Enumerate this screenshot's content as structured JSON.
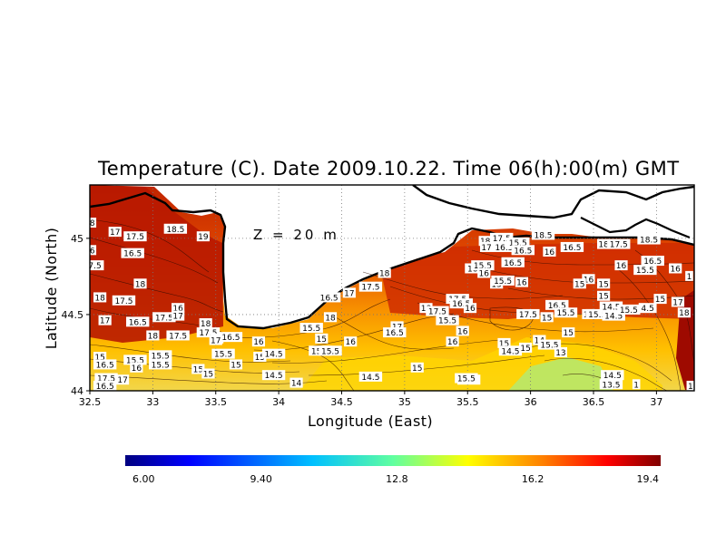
{
  "chart_data": {
    "type": "heatmap",
    "title": "Temperature (C). Date 2009.10.22. Time 06(h):00(m) GMT",
    "xlabel": "Longitude (East)",
    "ylabel": "Latitude (North)",
    "xlim": [
      32.5,
      37.3
    ],
    "ylim": [
      44.0,
      45.35
    ],
    "x_ticks": [
      "32.5",
      "33",
      "33.5",
      "34",
      "34.5",
      "35",
      "35.5",
      "36",
      "36.5",
      "37"
    ],
    "x_tick_values": [
      32.5,
      33,
      33.5,
      34,
      34.5,
      35,
      35.5,
      36,
      36.5,
      37
    ],
    "y_ticks": [
      "44",
      "44.5",
      "45"
    ],
    "y_tick_values": [
      44,
      44.5,
      45
    ],
    "annotation": "Z = 20 m",
    "grid": true,
    "colorbar": {
      "min": 6.0,
      "max": 19.4,
      "tick_labels": [
        "6.00",
        "9.40",
        "12.8",
        "16.2",
        "19.4"
      ],
      "tick_values": [
        6.0,
        9.4,
        12.8,
        16.2,
        19.4
      ]
    },
    "contour_labels": [
      {
        "lon": 32.52,
        "lat": 45.1,
        "text": "8"
      },
      {
        "lon": 32.7,
        "lat": 45.04,
        "text": "17"
      },
      {
        "lon": 32.86,
        "lat": 45.01,
        "text": "17.5"
      },
      {
        "lon": 33.18,
        "lat": 45.06,
        "text": "18.5"
      },
      {
        "lon": 33.4,
        "lat": 45.01,
        "text": "19"
      },
      {
        "lon": 32.52,
        "lat": 44.92,
        "text": "6"
      },
      {
        "lon": 32.84,
        "lat": 44.9,
        "text": "16.5"
      },
      {
        "lon": 32.54,
        "lat": 44.82,
        "text": "7.5"
      },
      {
        "lon": 32.58,
        "lat": 44.61,
        "text": "18"
      },
      {
        "lon": 32.9,
        "lat": 44.7,
        "text": "18"
      },
      {
        "lon": 32.77,
        "lat": 44.59,
        "text": "17.5"
      },
      {
        "lon": 32.62,
        "lat": 44.46,
        "text": "17"
      },
      {
        "lon": 32.88,
        "lat": 44.45,
        "text": "16.5"
      },
      {
        "lon": 33.09,
        "lat": 44.48,
        "text": "17.5"
      },
      {
        "lon": 33.2,
        "lat": 44.54,
        "text": "16"
      },
      {
        "lon": 33.2,
        "lat": 44.49,
        "text": "17"
      },
      {
        "lon": 33.0,
        "lat": 44.36,
        "text": "18"
      },
      {
        "lon": 33.2,
        "lat": 44.36,
        "text": "17.5"
      },
      {
        "lon": 33.42,
        "lat": 44.44,
        "text": "18"
      },
      {
        "lon": 33.44,
        "lat": 44.38,
        "text": "17.5"
      },
      {
        "lon": 33.51,
        "lat": 44.34,
        "text": "17"
      },
      {
        "lon": 33.62,
        "lat": 44.35,
        "text": "16.5"
      },
      {
        "lon": 33.84,
        "lat": 44.32,
        "text": "16"
      },
      {
        "lon": 32.58,
        "lat": 44.22,
        "text": "15"
      },
      {
        "lon": 32.62,
        "lat": 44.17,
        "text": "16.5"
      },
      {
        "lon": 32.86,
        "lat": 44.2,
        "text": "15.5"
      },
      {
        "lon": 32.87,
        "lat": 44.15,
        "text": "16"
      },
      {
        "lon": 33.06,
        "lat": 44.23,
        "text": "15.5"
      },
      {
        "lon": 33.06,
        "lat": 44.17,
        "text": "15.5"
      },
      {
        "lon": 32.63,
        "lat": 44.08,
        "text": "17.5"
      },
      {
        "lon": 32.62,
        "lat": 44.03,
        "text": "16.5"
      },
      {
        "lon": 32.76,
        "lat": 44.07,
        "text": "17"
      },
      {
        "lon": 33.36,
        "lat": 44.14,
        "text": "15"
      },
      {
        "lon": 33.44,
        "lat": 44.11,
        "text": "15"
      },
      {
        "lon": 33.5,
        "lat": 44.33,
        "text": "17"
      },
      {
        "lon": 33.56,
        "lat": 44.24,
        "text": "15.5"
      },
      {
        "lon": 33.66,
        "lat": 44.17,
        "text": "15"
      },
      {
        "lon": 33.85,
        "lat": 44.22,
        "text": "15"
      },
      {
        "lon": 33.96,
        "lat": 44.24,
        "text": "14.5"
      },
      {
        "lon": 33.96,
        "lat": 44.1,
        "text": "14.5"
      },
      {
        "lon": 34.14,
        "lat": 44.05,
        "text": "14"
      },
      {
        "lon": 34.26,
        "lat": 44.41,
        "text": "15.5"
      },
      {
        "lon": 34.34,
        "lat": 44.34,
        "text": "15"
      },
      {
        "lon": 34.33,
        "lat": 44.26,
        "text": "15.5"
      },
      {
        "lon": 34.41,
        "lat": 44.26,
        "text": "15.5"
      },
      {
        "lon": 34.41,
        "lat": 44.48,
        "text": "18"
      },
      {
        "lon": 34.4,
        "lat": 44.61,
        "text": "16.5"
      },
      {
        "lon": 34.56,
        "lat": 44.64,
        "text": "17"
      },
      {
        "lon": 34.73,
        "lat": 44.68,
        "text": "17.5"
      },
      {
        "lon": 34.84,
        "lat": 44.77,
        "text": "18"
      },
      {
        "lon": 34.57,
        "lat": 44.32,
        "text": "16"
      },
      {
        "lon": 34.94,
        "lat": 44.42,
        "text": "17"
      },
      {
        "lon": 34.92,
        "lat": 44.38,
        "text": "16.5"
      },
      {
        "lon": 34.73,
        "lat": 44.09,
        "text": "14.5"
      },
      {
        "lon": 35.1,
        "lat": 44.15,
        "text": "15"
      },
      {
        "lon": 35.51,
        "lat": 44.07,
        "text": "15.5"
      },
      {
        "lon": 35.17,
        "lat": 44.54,
        "text": "18"
      },
      {
        "lon": 35.26,
        "lat": 44.52,
        "text": "17.5"
      },
      {
        "lon": 35.34,
        "lat": 44.46,
        "text": "15.5"
      },
      {
        "lon": 35.42,
        "lat": 44.6,
        "text": "17.5"
      },
      {
        "lon": 35.45,
        "lat": 44.57,
        "text": "16.5"
      },
      {
        "lon": 35.52,
        "lat": 44.54,
        "text": "16"
      },
      {
        "lon": 35.46,
        "lat": 44.39,
        "text": "16"
      },
      {
        "lon": 35.38,
        "lat": 44.32,
        "text": "16"
      },
      {
        "lon": 35.57,
        "lat": 44.8,
        "text": "16.5"
      },
      {
        "lon": 35.62,
        "lat": 44.82,
        "text": "15.5"
      },
      {
        "lon": 35.63,
        "lat": 44.77,
        "text": "16"
      },
      {
        "lon": 35.73,
        "lat": 44.7,
        "text": "15"
      },
      {
        "lon": 35.78,
        "lat": 44.72,
        "text": "15.5"
      },
      {
        "lon": 35.93,
        "lat": 44.71,
        "text": "16"
      },
      {
        "lon": 35.64,
        "lat": 44.98,
        "text": "18"
      },
      {
        "lon": 35.65,
        "lat": 44.94,
        "text": "17"
      },
      {
        "lon": 35.77,
        "lat": 45.0,
        "text": "17.5"
      },
      {
        "lon": 35.79,
        "lat": 44.94,
        "text": "16.5"
      },
      {
        "lon": 35.9,
        "lat": 44.97,
        "text": "15.5"
      },
      {
        "lon": 35.94,
        "lat": 44.92,
        "text": "16.5"
      },
      {
        "lon": 35.86,
        "lat": 44.84,
        "text": "16.5"
      },
      {
        "lon": 36.1,
        "lat": 45.02,
        "text": "18.5"
      },
      {
        "lon": 36.15,
        "lat": 44.91,
        "text": "16"
      },
      {
        "lon": 36.33,
        "lat": 44.94,
        "text": "16.5"
      },
      {
        "lon": 36.58,
        "lat": 44.96,
        "text": "18"
      },
      {
        "lon": 36.7,
        "lat": 44.96,
        "text": "17.5"
      },
      {
        "lon": 36.94,
        "lat": 44.99,
        "text": "18.5"
      },
      {
        "lon": 36.97,
        "lat": 44.85,
        "text": "16.5"
      },
      {
        "lon": 36.72,
        "lat": 44.82,
        "text": "16"
      },
      {
        "lon": 36.46,
        "lat": 44.73,
        "text": "16"
      },
      {
        "lon": 36.39,
        "lat": 44.7,
        "text": "15"
      },
      {
        "lon": 36.58,
        "lat": 44.7,
        "text": "15"
      },
      {
        "lon": 36.21,
        "lat": 44.56,
        "text": "16.5"
      },
      {
        "lon": 35.98,
        "lat": 44.5,
        "text": "17.5"
      },
      {
        "lon": 36.13,
        "lat": 44.48,
        "text": "15"
      },
      {
        "lon": 36.28,
        "lat": 44.51,
        "text": "15.5"
      },
      {
        "lon": 36.46,
        "lat": 44.5,
        "text": "15"
      },
      {
        "lon": 36.53,
        "lat": 44.5,
        "text": "15.5"
      },
      {
        "lon": 36.66,
        "lat": 44.49,
        "text": "14.5"
      },
      {
        "lon": 36.58,
        "lat": 44.62,
        "text": "15"
      },
      {
        "lon": 36.64,
        "lat": 44.55,
        "text": "14.5"
      },
      {
        "lon": 36.78,
        "lat": 44.53,
        "text": "15.5"
      },
      {
        "lon": 36.93,
        "lat": 44.54,
        "text": "4.5"
      },
      {
        "lon": 36.91,
        "lat": 44.79,
        "text": "15.5"
      },
      {
        "lon": 37.03,
        "lat": 44.6,
        "text": "15"
      },
      {
        "lon": 37.17,
        "lat": 44.58,
        "text": "17"
      },
      {
        "lon": 37.15,
        "lat": 44.8,
        "text": "16"
      },
      {
        "lon": 37.26,
        "lat": 44.75,
        "text": "1"
      },
      {
        "lon": 37.22,
        "lat": 44.51,
        "text": "18"
      },
      {
        "lon": 35.79,
        "lat": 44.31,
        "text": "15"
      },
      {
        "lon": 35.84,
        "lat": 44.26,
        "text": "14.5"
      },
      {
        "lon": 35.96,
        "lat": 44.28,
        "text": "15"
      },
      {
        "lon": 36.07,
        "lat": 44.33,
        "text": "14"
      },
      {
        "lon": 36.15,
        "lat": 44.3,
        "text": "15.5"
      },
      {
        "lon": 36.3,
        "lat": 44.38,
        "text": "15"
      },
      {
        "lon": 36.24,
        "lat": 44.25,
        "text": "13"
      },
      {
        "lon": 36.65,
        "lat": 44.1,
        "text": "14.5"
      },
      {
        "lon": 36.64,
        "lat": 44.04,
        "text": "13.5"
      },
      {
        "lon": 36.84,
        "lat": 44.04,
        "text": "1"
      },
      {
        "lon": 37.27,
        "lat": 44.03,
        "text": "1"
      },
      {
        "lon": 35.49,
        "lat": 44.08,
        "text": "15.5"
      }
    ]
  }
}
